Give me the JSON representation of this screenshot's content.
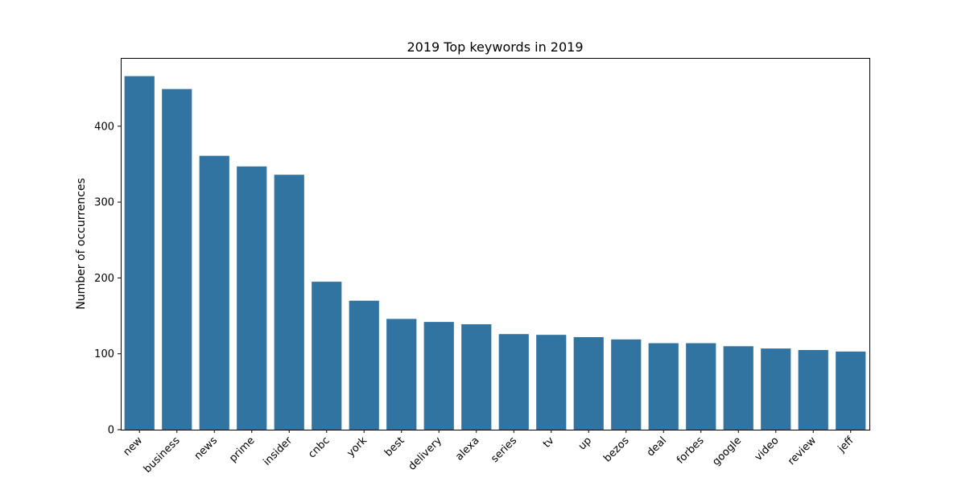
{
  "chart_data": {
    "type": "bar",
    "title": "2019 Top keywords in 2019",
    "xlabel": "",
    "ylabel": "Number of occurrences",
    "ylim": [
      0,
      490
    ],
    "yticks": [
      0,
      100,
      200,
      300,
      400
    ],
    "grid": false,
    "bar_color": "#3274a1",
    "categories": [
      "new",
      "business",
      "news",
      "prime",
      "insider",
      "cnbc",
      "york",
      "best",
      "delivery",
      "alexa",
      "series",
      "tv",
      "up",
      "bezos",
      "deal",
      "forbes",
      "google",
      "video",
      "review",
      "jeff"
    ],
    "values": [
      466,
      449,
      361,
      347,
      336,
      195,
      170,
      146,
      142,
      139,
      126,
      125,
      122,
      119,
      114,
      114,
      110,
      107,
      105,
      103
    ]
  }
}
